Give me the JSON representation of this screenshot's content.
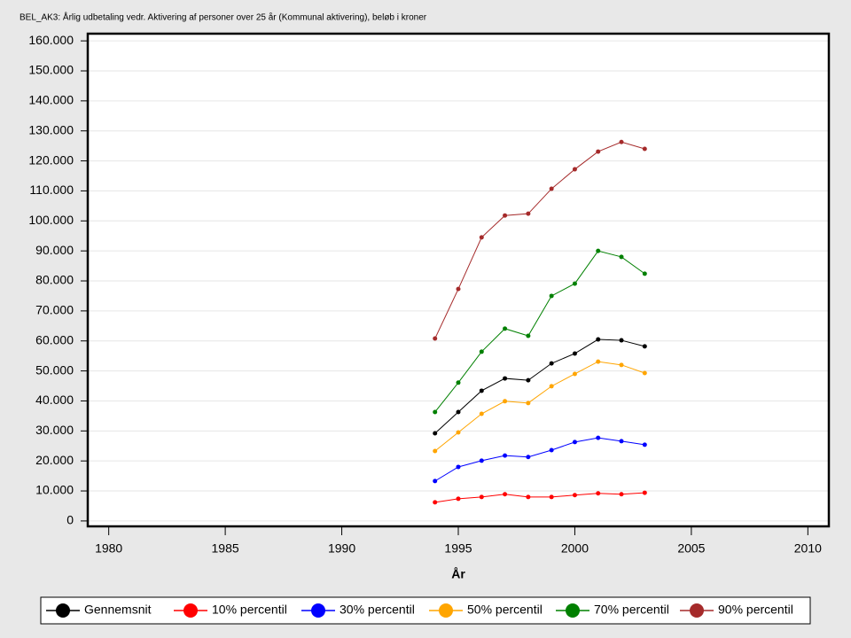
{
  "chart_data": {
    "type": "line",
    "title": "BEL_AK3: Årlig udbetaling vedr. Aktivering af personer over 25 år (Kommunal aktivering), beløb i kroner",
    "x_label": "År",
    "x": [
      1994,
      1995,
      1996,
      1997,
      1998,
      1999,
      2000,
      2001,
      2002,
      2003
    ],
    "series": [
      {
        "name": "Gennemsnit",
        "color": "#000000",
        "values": [
          29200,
          36300,
          43400,
          47500,
          46900,
          52500,
          55800,
          60500,
          60200,
          58200
        ]
      },
      {
        "name": "10% percentil",
        "color": "#ff0000",
        "values": [
          6200,
          7400,
          8000,
          8900,
          8000,
          8000,
          8600,
          9200,
          8900,
          9400
        ]
      },
      {
        "name": "30% percentil",
        "color": "#0000ff",
        "values": [
          13300,
          18000,
          20100,
          21800,
          21300,
          23600,
          26300,
          27700,
          26600,
          25400
        ]
      },
      {
        "name": "50% percentil",
        "color": "#ffa500",
        "values": [
          23300,
          29500,
          35700,
          39900,
          39300,
          44900,
          49000,
          53100,
          52000,
          49300
        ]
      },
      {
        "name": "70% percentil",
        "color": "#008000",
        "values": [
          36300,
          46100,
          56400,
          64100,
          61700,
          75000,
          79100,
          90000,
          88000,
          82400
        ]
      },
      {
        "name": "90% percentil",
        "color": "#a52a2a",
        "values": [
          60800,
          77300,
          94500,
          101800,
          102400,
          110700,
          117200,
          123100,
          126300,
          124000
        ]
      }
    ],
    "xlim": [
      1979.1,
      2010.9
    ],
    "xticks": [
      1980,
      1985,
      1990,
      1995,
      2000,
      2005,
      2010
    ],
    "ylim": [
      -1800,
      162400
    ],
    "yticks": [
      0,
      {
        "value": 10000,
        "label": "10.000"
      },
      {
        "value": 20000,
        "label": "20.000"
      },
      {
        "value": 30000,
        "label": "30.000"
      },
      {
        "value": 40000,
        "label": "40.000"
      },
      {
        "value": 50000,
        "label": "50.000"
      },
      {
        "value": 60000,
        "label": "60.000"
      },
      {
        "value": 70000,
        "label": "70.000"
      },
      {
        "value": 80000,
        "label": "80.000"
      },
      {
        "value": 90000,
        "label": "90.000"
      },
      {
        "value": 100000,
        "label": "100.000"
      },
      {
        "value": 110000,
        "label": "110.000"
      },
      {
        "value": 120000,
        "label": "120.000"
      },
      {
        "value": 130000,
        "label": "130.000"
      },
      {
        "value": 140000,
        "label": "140.000"
      },
      {
        "value": 150000,
        "label": "150.000"
      },
      {
        "value": 160000,
        "label": "160.000"
      }
    ],
    "grid": true
  }
}
